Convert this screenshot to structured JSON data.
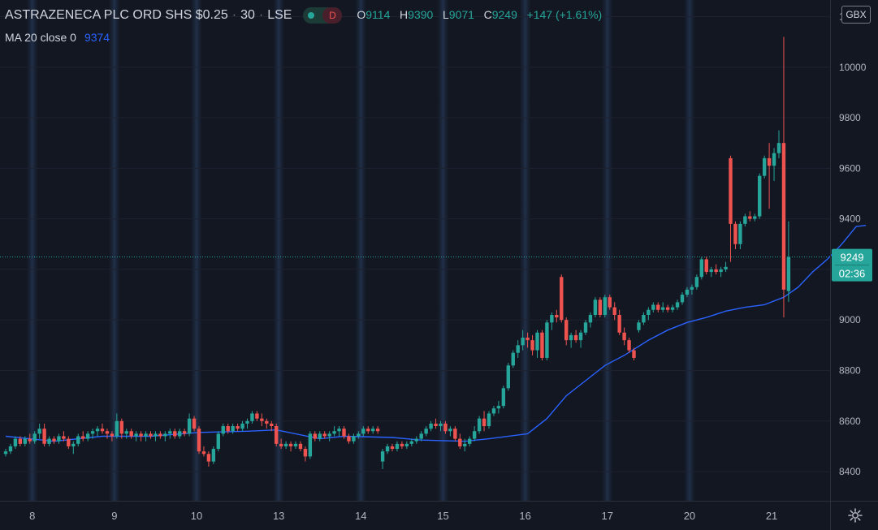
{
  "header": {
    "symbol": "ASTRAZENECA PLC ORD SHS $0.25",
    "interval": "30",
    "exchange": "LSE",
    "badge_letter": "D",
    "ohlc": {
      "o_label": "O",
      "o_value": "9114",
      "h_label": "H",
      "h_value": "9390",
      "l_label": "L",
      "l_value": "9071",
      "c_label": "C",
      "c_value": "9249",
      "change": "+147 (+1.61%)"
    }
  },
  "indicator": {
    "label": "MA 20 close 0",
    "value": "9374"
  },
  "currency": "GBX",
  "price_badge": {
    "price": "9249",
    "countdown": "02:36"
  },
  "colors": {
    "background": "#131722",
    "up": "#26a69a",
    "down": "#ef5350",
    "ma": "#2962ff",
    "grid": "#1e2230",
    "text": "#b2b5be",
    "accent_green": "#26a69a",
    "accent_pink": "#ef5350"
  },
  "chart_data": {
    "type": "candlestick",
    "y_ticks": [
      8400,
      8600,
      8800,
      9000,
      9200,
      9400,
      9600,
      9800,
      10000,
      10200
    ],
    "y_range": [
      8320,
      10240
    ],
    "last_price": 9249,
    "x_labels": [
      {
        "label": "8",
        "bar": 6
      },
      {
        "label": "9",
        "bar": 23
      },
      {
        "label": "10",
        "bar": 40
      },
      {
        "label": "13",
        "bar": 57
      },
      {
        "label": "14",
        "bar": 74
      },
      {
        "label": "15",
        "bar": 91
      },
      {
        "label": "16",
        "bar": 108
      },
      {
        "label": "17",
        "bar": 125
      },
      {
        "label": "20",
        "bar": 142
      },
      {
        "label": "21",
        "bar": 159
      }
    ],
    "session_starts": [
      6,
      23,
      40,
      57,
      74,
      91,
      108,
      125,
      142
    ],
    "candles": [
      [
        8470,
        8490,
        8460,
        8480
      ],
      [
        8480,
        8510,
        8470,
        8500
      ],
      [
        8500,
        8540,
        8490,
        8530
      ],
      [
        8530,
        8540,
        8500,
        8510
      ],
      [
        8510,
        8540,
        8500,
        8530
      ],
      [
        8530,
        8550,
        8510,
        8520
      ],
      [
        8520,
        8560,
        8510,
        8550
      ],
      [
        8550,
        8590,
        8530,
        8570
      ],
      [
        8570,
        8590,
        8500,
        8510
      ],
      [
        8510,
        8540,
        8500,
        8530
      ],
      [
        8530,
        8540,
        8510,
        8520
      ],
      [
        8520,
        8550,
        8510,
        8540
      ],
      [
        8540,
        8560,
        8520,
        8530
      ],
      [
        8530,
        8540,
        8490,
        8500
      ],
      [
        8500,
        8520,
        8470,
        8510
      ],
      [
        8510,
        8550,
        8500,
        8540
      ],
      [
        8540,
        8560,
        8520,
        8530
      ],
      [
        8530,
        8560,
        8520,
        8550
      ],
      [
        8550,
        8570,
        8530,
        8560
      ],
      [
        8560,
        8580,
        8540,
        8570
      ],
      [
        8570,
        8590,
        8550,
        8560
      ],
      [
        8560,
        8570,
        8530,
        8550
      ],
      [
        8550,
        8560,
        8520,
        8540
      ],
      [
        8540,
        8630,
        8530,
        8600
      ],
      [
        8600,
        8610,
        8530,
        8550
      ],
      [
        8550,
        8570,
        8530,
        8560
      ],
      [
        8560,
        8570,
        8530,
        8540
      ],
      [
        8540,
        8560,
        8520,
        8550
      ],
      [
        8550,
        8560,
        8520,
        8540
      ],
      [
        8540,
        8560,
        8520,
        8550
      ],
      [
        8550,
        8560,
        8530,
        8540
      ],
      [
        8540,
        8560,
        8520,
        8550
      ],
      [
        8550,
        8560,
        8530,
        8540
      ],
      [
        8540,
        8560,
        8520,
        8550
      ],
      [
        8550,
        8570,
        8530,
        8560
      ],
      [
        8560,
        8570,
        8530,
        8540
      ],
      [
        8540,
        8570,
        8530,
        8560
      ],
      [
        8560,
        8570,
        8540,
        8550
      ],
      [
        8550,
        8630,
        8540,
        8610
      ],
      [
        8610,
        8620,
        8560,
        8570
      ],
      [
        8570,
        8580,
        8470,
        8480
      ],
      [
        8480,
        8500,
        8460,
        8470
      ],
      [
        8470,
        8480,
        8420,
        8440
      ],
      [
        8440,
        8500,
        8430,
        8490
      ],
      [
        8490,
        8560,
        8480,
        8550
      ],
      [
        8550,
        8590,
        8540,
        8580
      ],
      [
        8580,
        8590,
        8550,
        8560
      ],
      [
        8560,
        8590,
        8550,
        8580
      ],
      [
        8580,
        8590,
        8560,
        8570
      ],
      [
        8570,
        8600,
        8560,
        8590
      ],
      [
        8590,
        8610,
        8570,
        8600
      ],
      [
        8600,
        8640,
        8590,
        8630
      ],
      [
        8630,
        8640,
        8600,
        8610
      ],
      [
        8610,
        8630,
        8580,
        8600
      ],
      [
        8600,
        8610,
        8570,
        8590
      ],
      [
        8590,
        8600,
        8560,
        8580
      ],
      [
        8580,
        8590,
        8500,
        8510
      ],
      [
        8510,
        8530,
        8490,
        8500
      ],
      [
        8500,
        8520,
        8490,
        8510
      ],
      [
        8510,
        8520,
        8480,
        8500
      ],
      [
        8500,
        8520,
        8490,
        8510
      ],
      [
        8510,
        8520,
        8480,
        8490
      ],
      [
        8490,
        8500,
        8440,
        8460
      ],
      [
        8460,
        8560,
        8450,
        8550
      ],
      [
        8550,
        8560,
        8520,
        8530
      ],
      [
        8530,
        8560,
        8520,
        8550
      ],
      [
        8550,
        8560,
        8530,
        8540
      ],
      [
        8540,
        8560,
        8520,
        8550
      ],
      [
        8550,
        8580,
        8540,
        8560
      ],
      [
        8560,
        8580,
        8540,
        8570
      ],
      [
        8570,
        8580,
        8530,
        8540
      ],
      [
        8540,
        8550,
        8510,
        8520
      ],
      [
        8520,
        8550,
        8510,
        8540
      ],
      [
        8540,
        8560,
        8530,
        8550
      ],
      [
        8550,
        8580,
        8540,
        8570
      ],
      [
        8570,
        8580,
        8550,
        8560
      ],
      [
        8560,
        8580,
        8550,
        8570
      ],
      [
        8570,
        8580,
        8550,
        8560
      ],
      [
        8440,
        8490,
        8410,
        8480
      ],
      [
        8480,
        8510,
        8470,
        8500
      ],
      [
        8500,
        8510,
        8480,
        8490
      ],
      [
        8490,
        8520,
        8480,
        8510
      ],
      [
        8510,
        8520,
        8490,
        8500
      ],
      [
        8500,
        8520,
        8490,
        8510
      ],
      [
        8510,
        8530,
        8500,
        8520
      ],
      [
        8520,
        8540,
        8510,
        8530
      ],
      [
        8530,
        8560,
        8520,
        8550
      ],
      [
        8550,
        8580,
        8540,
        8570
      ],
      [
        8570,
        8600,
        8560,
        8590
      ],
      [
        8590,
        8610,
        8570,
        8580
      ],
      [
        8580,
        8600,
        8560,
        8590
      ],
      [
        8590,
        8600,
        8550,
        8560
      ],
      [
        8560,
        8580,
        8540,
        8570
      ],
      [
        8570,
        8580,
        8520,
        8530
      ],
      [
        8530,
        8550,
        8490,
        8500
      ],
      [
        8500,
        8530,
        8480,
        8510
      ],
      [
        8510,
        8540,
        8500,
        8530
      ],
      [
        8530,
        8580,
        8520,
        8560
      ],
      [
        8560,
        8620,
        8550,
        8610
      ],
      [
        8610,
        8640,
        8560,
        8580
      ],
      [
        8580,
        8640,
        8570,
        8630
      ],
      [
        8630,
        8660,
        8620,
        8650
      ],
      [
        8650,
        8680,
        8630,
        8660
      ],
      [
        8660,
        8740,
        8650,
        8730
      ],
      [
        8730,
        8830,
        8720,
        8820
      ],
      [
        8820,
        8880,
        8810,
        8870
      ],
      [
        8870,
        8920,
        8850,
        8900
      ],
      [
        8900,
        8960,
        8880,
        8930
      ],
      [
        8930,
        8950,
        8890,
        8920
      ],
      [
        8920,
        8940,
        8860,
        8880
      ],
      [
        8880,
        8960,
        8850,
        8950
      ],
      [
        8950,
        8960,
        8840,
        8850
      ],
      [
        8850,
        9000,
        8840,
        8990
      ],
      [
        8990,
        9030,
        8960,
        9020
      ],
      [
        9020,
        9040,
        8990,
        9010
      ],
      [
        9170,
        9180,
        8990,
        9000
      ],
      [
        9000,
        9010,
        8900,
        8920
      ],
      [
        8920,
        8950,
        8890,
        8940
      ],
      [
        8940,
        8960,
        8910,
        8920
      ],
      [
        8920,
        8960,
        8890,
        8950
      ],
      [
        8950,
        9000,
        8940,
        8990
      ],
      [
        8990,
        9030,
        8970,
        9020
      ],
      [
        9020,
        9090,
        9010,
        9080
      ],
      [
        9080,
        9090,
        9010,
        9020
      ],
      [
        9020,
        9100,
        9010,
        9090
      ],
      [
        9090,
        9100,
        9040,
        9050
      ],
      [
        9050,
        9070,
        9000,
        9020
      ],
      [
        9020,
        9040,
        8940,
        8950
      ],
      [
        8950,
        8970,
        8900,
        8920
      ],
      [
        8920,
        8930,
        8870,
        8880
      ],
      [
        8880,
        8890,
        8840,
        8850
      ],
      [
        8960,
        9000,
        8950,
        8990
      ],
      [
        8990,
        9030,
        8980,
        9020
      ],
      [
        9020,
        9050,
        9000,
        9040
      ],
      [
        9040,
        9070,
        9030,
        9060
      ],
      [
        9060,
        9070,
        9030,
        9040
      ],
      [
        9040,
        9070,
        9030,
        9050
      ],
      [
        9050,
        9060,
        9030,
        9040
      ],
      [
        9040,
        9060,
        9030,
        9050
      ],
      [
        9050,
        9080,
        9040,
        9070
      ],
      [
        9070,
        9110,
        9060,
        9100
      ],
      [
        9100,
        9130,
        9090,
        9120
      ],
      [
        9120,
        9140,
        9100,
        9130
      ],
      [
        9130,
        9180,
        9120,
        9170
      ],
      [
        9170,
        9250,
        9160,
        9240
      ],
      [
        9240,
        9250,
        9180,
        9190
      ],
      [
        9190,
        9210,
        9170,
        9200
      ],
      [
        9200,
        9220,
        9180,
        9190
      ],
      [
        9190,
        9210,
        9170,
        9200
      ],
      [
        9200,
        9230,
        9190,
        9210
      ],
      [
        9640,
        9650,
        9230,
        9380
      ],
      [
        9380,
        9390,
        9280,
        9300
      ],
      [
        9300,
        9390,
        9280,
        9380
      ],
      [
        9380,
        9420,
        9370,
        9410
      ],
      [
        9410,
        9430,
        9390,
        9400
      ],
      [
        9400,
        9420,
        9390,
        9410
      ],
      [
        9410,
        9580,
        9400,
        9570
      ],
      [
        9570,
        9650,
        9560,
        9640
      ],
      [
        9640,
        9700,
        9440,
        9610
      ],
      [
        9610,
        9680,
        9550,
        9660
      ],
      [
        9660,
        9750,
        9640,
        9700
      ],
      [
        9700,
        10120,
        9010,
        9120
      ],
      [
        9114,
        9390,
        9071,
        9249
      ]
    ],
    "ma_series": [
      [
        0,
        8540
      ],
      [
        10,
        8520
      ],
      [
        20,
        8540
      ],
      [
        30,
        8540
      ],
      [
        40,
        8555
      ],
      [
        50,
        8560
      ],
      [
        56,
        8565
      ],
      [
        65,
        8530
      ],
      [
        70,
        8540
      ],
      [
        80,
        8535
      ],
      [
        86,
        8525
      ],
      [
        95,
        8520
      ],
      [
        100,
        8530
      ],
      [
        108,
        8550
      ],
      [
        112,
        8610
      ],
      [
        116,
        8700
      ],
      [
        120,
        8760
      ],
      [
        124,
        8820
      ],
      [
        128,
        8860
      ],
      [
        133,
        8920
      ],
      [
        137,
        8960
      ],
      [
        141,
        8990
      ],
      [
        145,
        9010
      ],
      [
        149,
        9035
      ],
      [
        153,
        9050
      ],
      [
        157,
        9060
      ],
      [
        161,
        9090
      ],
      [
        164,
        9130
      ],
      [
        167,
        9190
      ],
      [
        170,
        9240
      ],
      [
        173,
        9300
      ],
      [
        176,
        9370
      ],
      [
        178,
        9374
      ]
    ]
  }
}
